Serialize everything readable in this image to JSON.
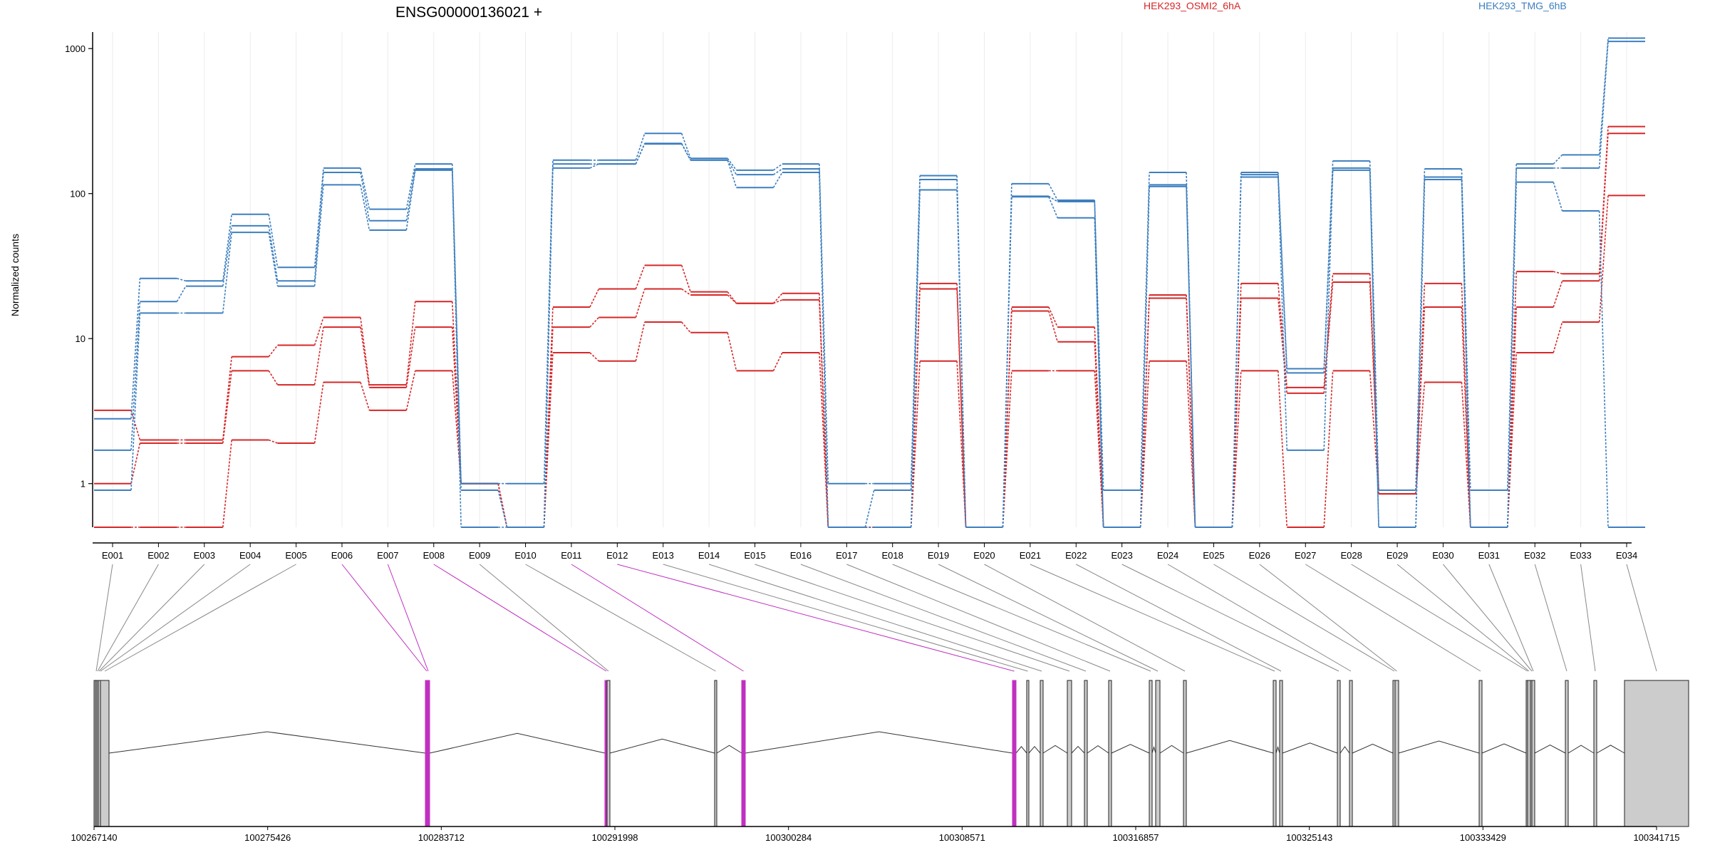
{
  "title": "ENSG00000136021 +",
  "ylabel": "Normalized counts",
  "legend": [
    {
      "label": "HEK293_OSMI2_6hA",
      "color": "#d62728"
    },
    {
      "label": "HEK293_TMG_6hB",
      "color": "#3d7fbf"
    }
  ],
  "chart_data": {
    "type": "line",
    "title": "ENSG00000136021 +",
    "ylabel": "Normalized counts",
    "xlabel": "",
    "y_scale": "log",
    "ylim": [
      0.5,
      1300
    ],
    "y_ticks": [
      1,
      10,
      100,
      1000
    ],
    "y_tick_labels": [
      "1",
      "10",
      "100",
      "1000"
    ],
    "grid": "vertical lines at exon bins",
    "categories": [
      "E001",
      "E002",
      "E003",
      "E004",
      "E005",
      "E006",
      "E007",
      "E008",
      "E009",
      "E010",
      "E011",
      "E012",
      "E013",
      "E014",
      "E015",
      "E016",
      "E017",
      "E018",
      "E019",
      "E020",
      "E021",
      "E022",
      "E023",
      "E024",
      "E025",
      "E026",
      "E027",
      "E028",
      "E029",
      "E030",
      "E031",
      "E032",
      "E033",
      "E034"
    ],
    "series": [
      {
        "group": "HEK293_OSMI2_6hA",
        "color": "#d62728",
        "values": [
          3.2,
          2.0,
          2.0,
          7.5,
          9.0,
          14.0,
          4.8,
          18.0,
          1.0,
          0.5,
          16.5,
          22.0,
          32.0,
          21.0,
          17.5,
          20.5,
          0.5,
          0.5,
          24.0,
          0.5,
          16.5,
          12.0,
          0.5,
          20.0,
          0.5,
          24.0,
          4.6,
          28.0,
          0.9,
          24.0,
          0.5,
          29.0,
          28.0,
          290.0
        ]
      },
      {
        "group": "HEK293_OSMI2_6hA",
        "color": "#d62728",
        "values": [
          1.0,
          1.9,
          1.9,
          6.0,
          4.8,
          12.0,
          4.6,
          12.0,
          1.0,
          0.5,
          12.0,
          14.0,
          22.0,
          20.0,
          17.5,
          18.5,
          0.5,
          0.5,
          22.0,
          0.5,
          15.5,
          9.5,
          0.5,
          19.0,
          0.5,
          19.0,
          4.2,
          24.5,
          0.85,
          16.5,
          0.5,
          16.5,
          25.0,
          260.0
        ]
      },
      {
        "group": "HEK293_OSMI2_6hA",
        "color": "#d62728",
        "values": [
          0.5,
          0.5,
          0.5,
          2.0,
          1.9,
          5.0,
          3.2,
          6.0,
          1.0,
          0.5,
          8.0,
          7.0,
          13.0,
          11.0,
          6.0,
          8.0,
          0.5,
          0.5,
          7.0,
          0.5,
          6.0,
          6.0,
          0.5,
          7.0,
          0.5,
          6.0,
          0.5,
          6.0,
          0.85,
          5.0,
          0.5,
          8.0,
          13.0,
          97.0
        ]
      },
      {
        "group": "HEK293_TMG_6hB",
        "color": "#3d7fbf",
        "values": [
          2.8,
          26.0,
          25.0,
          72.0,
          31.0,
          150.0,
          78.0,
          160.0,
          1.0,
          1.0,
          170.0,
          170.0,
          260.0,
          175.0,
          145.0,
          160.0,
          1.0,
          1.0,
          133.0,
          0.5,
          117.0,
          90.0,
          0.9,
          140.0,
          0.5,
          140.0,
          6.2,
          168.0,
          0.9,
          148.0,
          0.9,
          160.0,
          185.0,
          1180.0
        ]
      },
      {
        "group": "HEK293_TMG_6hB",
        "color": "#3d7fbf",
        "values": [
          1.7,
          18.0,
          23.0,
          60.0,
          25.0,
          140.0,
          65.0,
          148.0,
          0.9,
          0.5,
          160.0,
          160.0,
          220.0,
          170.0,
          135.0,
          148.0,
          0.5,
          0.9,
          125.0,
          0.5,
          96.0,
          88.0,
          0.5,
          115.0,
          0.5,
          135.0,
          5.8,
          150.0,
          0.5,
          130.0,
          0.5,
          150.0,
          150.0,
          1120.0
        ]
      },
      {
        "group": "HEK293_TMG_6hB",
        "color": "#3d7fbf",
        "values": [
          0.9,
          15.0,
          15.0,
          54.0,
          23.0,
          115.0,
          56.0,
          145.0,
          0.5,
          0.5,
          150.0,
          160.0,
          222.0,
          170.0,
          110.0,
          140.0,
          0.5,
          0.5,
          106.0,
          0.5,
          95.0,
          68.0,
          0.5,
          112.0,
          0.5,
          130.0,
          1.7,
          145.0,
          0.5,
          125.0,
          0.5,
          120.0,
          76.0,
          0.5
        ]
      }
    ]
  },
  "gene_model": {
    "genomic_axis_labels": [
      "100267140",
      "100275426",
      "100283712",
      "100291998",
      "100300284",
      "100308571",
      "100316857",
      "100325143",
      "100333429",
      "100341715"
    ],
    "highlight_color": "#c030c0",
    "exons": [
      {
        "id": "E001",
        "highlighted": false
      },
      {
        "id": "E002",
        "highlighted": false
      },
      {
        "id": "E003",
        "highlighted": false
      },
      {
        "id": "E004",
        "highlighted": false
      },
      {
        "id": "E005",
        "highlighted": false
      },
      {
        "id": "E006",
        "highlighted": true
      },
      {
        "id": "E007",
        "highlighted": true
      },
      {
        "id": "E008",
        "highlighted": true
      },
      {
        "id": "E009",
        "highlighted": false
      },
      {
        "id": "E010",
        "highlighted": false
      },
      {
        "id": "E011",
        "highlighted": true
      },
      {
        "id": "E012",
        "highlighted": true
      },
      {
        "id": "E013",
        "highlighted": false
      },
      {
        "id": "E014",
        "highlighted": false
      },
      {
        "id": "E015",
        "highlighted": false
      },
      {
        "id": "E016",
        "highlighted": false
      },
      {
        "id": "E017",
        "highlighted": false
      },
      {
        "id": "E018",
        "highlighted": false
      },
      {
        "id": "E019",
        "highlighted": false
      },
      {
        "id": "E020",
        "highlighted": false
      },
      {
        "id": "E021",
        "highlighted": false
      },
      {
        "id": "E022",
        "highlighted": false
      },
      {
        "id": "E023",
        "highlighted": false
      },
      {
        "id": "E024",
        "highlighted": false
      },
      {
        "id": "E025",
        "highlighted": false
      },
      {
        "id": "E026",
        "highlighted": false
      },
      {
        "id": "E027",
        "highlighted": false
      },
      {
        "id": "E028",
        "highlighted": false
      },
      {
        "id": "E029",
        "highlighted": false
      },
      {
        "id": "E030",
        "highlighted": false
      },
      {
        "id": "E031",
        "highlighted": false
      },
      {
        "id": "E032",
        "highlighted": false
      },
      {
        "id": "E033",
        "highlighted": false
      },
      {
        "id": "E034",
        "highlighted": false
      }
    ]
  }
}
